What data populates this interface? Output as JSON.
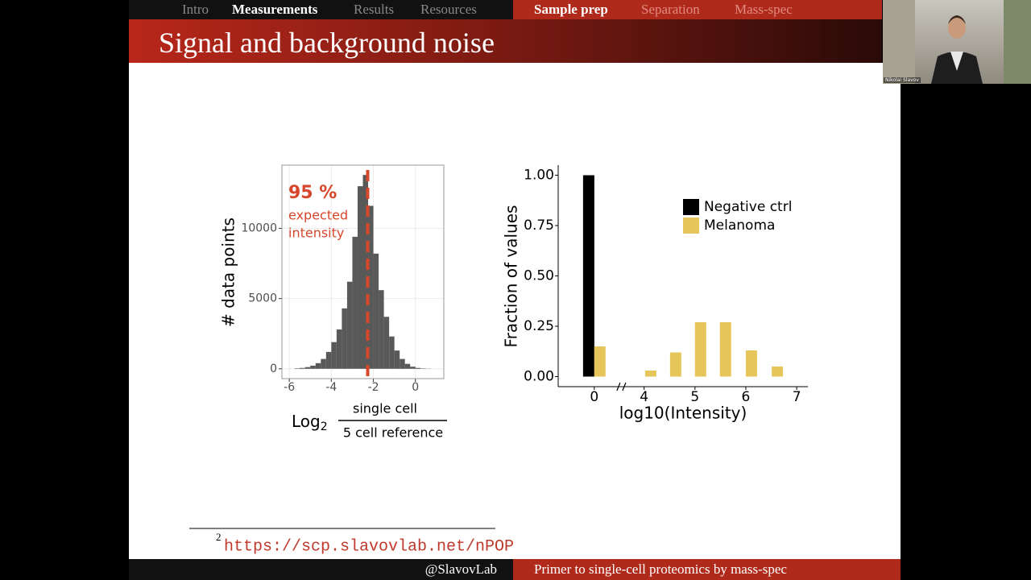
{
  "nav": {
    "left": [
      {
        "label": "Intro",
        "active": false
      },
      {
        "label": "Measurements",
        "active": true
      },
      {
        "label": "Results",
        "active": false
      },
      {
        "label": "Resources",
        "active": false
      }
    ],
    "right": [
      {
        "label": "Sample prep",
        "active": true
      },
      {
        "label": "Separation",
        "active": false
      },
      {
        "label": "Mass-spec",
        "active": false
      }
    ]
  },
  "header": {
    "title": "Signal and background noise"
  },
  "webcam": {
    "name": "Nikolai Slavov"
  },
  "chart_data": [
    {
      "type": "histogram",
      "ylabel": "# data points",
      "xlabel": {
        "prefix": "Log",
        "subscript": "2",
        "numerator": "single cell",
        "denominator": "5 cell reference"
      },
      "bins": [
        -5.75,
        -5.5,
        -5.25,
        -5.0,
        -4.75,
        -4.5,
        -4.25,
        -4.0,
        -3.75,
        -3.5,
        -3.25,
        -3.0,
        -2.75,
        -2.5,
        -2.25,
        -2.0,
        -1.75,
        -1.5,
        -1.25,
        -1.0,
        -0.75,
        -0.5,
        -0.25,
        0.0,
        0.25,
        0.5,
        0.75
      ],
      "values": [
        30,
        60,
        120,
        220,
        400,
        700,
        1200,
        1900,
        2800,
        4300,
        6200,
        9400,
        13000,
        13800,
        11600,
        8200,
        5600,
        3700,
        2300,
        1300,
        700,
        350,
        150,
        60,
        25,
        10
      ],
      "color": "#595959",
      "xlim": [
        -6.35,
        1.35
      ],
      "ylim": [
        -700,
        14500
      ],
      "xticks": [
        -6,
        -4,
        -2,
        0
      ],
      "yticks": [
        0,
        5000,
        10000
      ],
      "grid": true,
      "vline": {
        "x": -2.27,
        "color": "#d7472c"
      },
      "annotations": [
        "95 %",
        "expected",
        "intensity"
      ],
      "annotation_color": "#d7472c"
    },
    {
      "type": "bar",
      "ylabel": "Fraction of values",
      "xlabel": "log10(Intensity)",
      "series": [
        {
          "name": "Negative ctrl",
          "color": "#000000",
          "x": [
            -0.11
          ],
          "values": [
            1.0
          ]
        },
        {
          "name": "Melanoma",
          "color": "#e6c65a",
          "x": [
            0.11,
            4.13,
            4.62,
            5.11,
            5.6,
            6.11,
            6.62
          ],
          "values": [
            0.15,
            0.03,
            0.12,
            0.27,
            0.27,
            0.13,
            0.05
          ]
        }
      ],
      "xlim": [
        -0.71,
        7.22
      ],
      "xbreak": [
        0.54,
        3.56
      ],
      "ylim": [
        -0.05,
        1.05
      ],
      "xticks": [
        0,
        4,
        5,
        6,
        7
      ],
      "yticks": [
        {
          "value": 0,
          "label": "0.00"
        },
        {
          "value": 0.25,
          "label": "0.25"
        },
        {
          "value": 0.5,
          "label": "0.50"
        },
        {
          "value": 0.75,
          "label": "0.75"
        },
        {
          "value": 1,
          "label": "1.00"
        }
      ],
      "grid": false,
      "legend": "upper right"
    }
  ],
  "footnote": {
    "number": "2",
    "url": "https://scp.slavovlab.net/nPOP"
  },
  "footer": {
    "handle": "@SlavovLab",
    "title": "Primer to single-cell proteomics by mass-spec"
  }
}
